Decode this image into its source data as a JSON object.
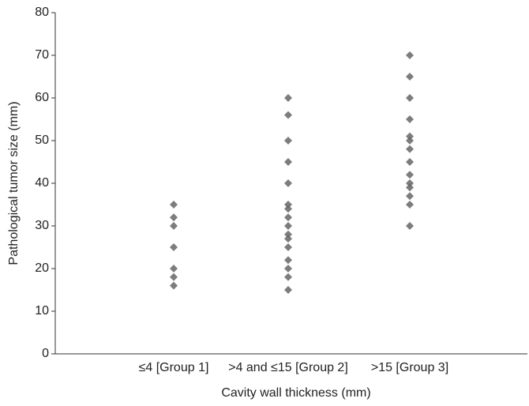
{
  "chart_data": {
    "type": "scatter",
    "x_label": "Cavity wall thickness (mm)",
    "y_label": "Pathological tumor size (mm)",
    "categories": [
      "≤4 [Group 1]",
      ">4 and ≤15 [Group 2]",
      ">15 [Group 3]"
    ],
    "values": [
      [
        35,
        32,
        30,
        25,
        20,
        18,
        16
      ],
      [
        60,
        56,
        50,
        45,
        40,
        35,
        34,
        32,
        30,
        28,
        27,
        25,
        22,
        20,
        18,
        15
      ],
      [
        70,
        65,
        60,
        55,
        51,
        50,
        48,
        45,
        42,
        40,
        39,
        37,
        35,
        30
      ]
    ],
    "color": "#666666",
    "ylim": [
      0,
      80
    ],
    "yticks": [
      0,
      10,
      20,
      30,
      40,
      50,
      60,
      70,
      80
    ],
    "grid": false
  }
}
